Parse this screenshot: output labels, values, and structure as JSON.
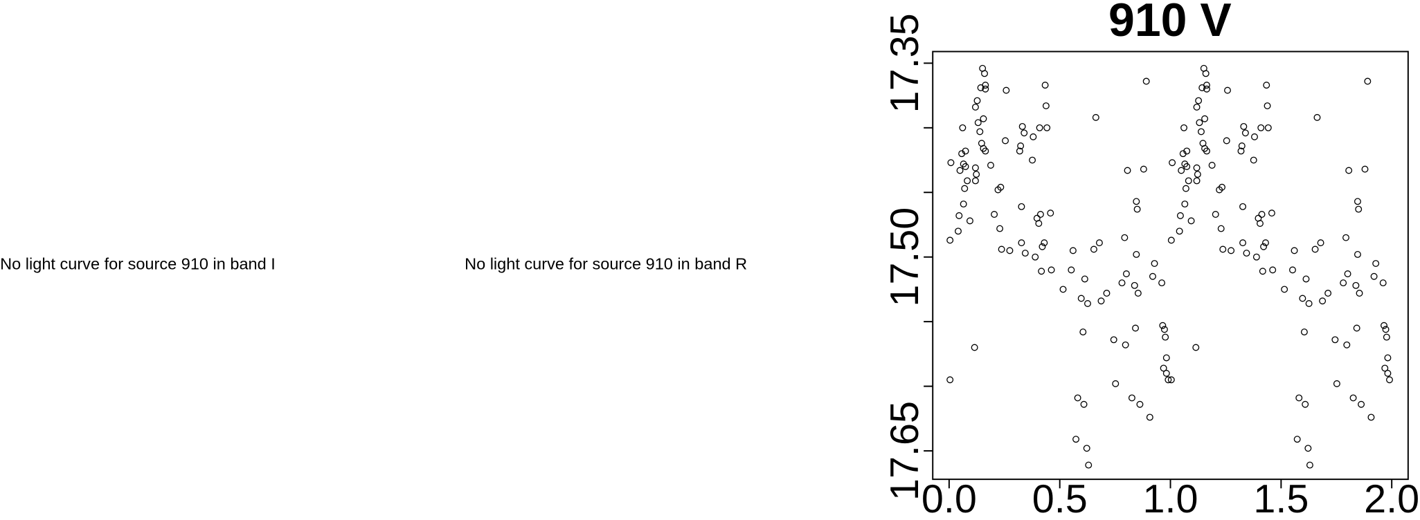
{
  "messages": [
    "No light curve for source 910 in band I",
    "No light curve for source 910 in band R"
  ],
  "chart_data": {
    "type": "scatter",
    "title": "910 V",
    "color": "#000000",
    "xlim": [
      -0.074,
      2.074
    ],
    "ylim": [
      17.672,
      17.341
    ],
    "xticks": [
      {
        "value": 0,
        "label": "0.0"
      },
      {
        "value": 0.5,
        "label": "0.5"
      },
      {
        "value": 1,
        "label": "1.0"
      },
      {
        "value": 1.5,
        "label": "1.5"
      },
      {
        "value": 2,
        "label": "2.0"
      }
    ],
    "yticks": [
      17.35,
      {
        "value": 17.4,
        "label": null
      },
      {
        "value": 17.45,
        "label": null
      },
      {
        "value": 17.5,
        "label": "17.50"
      },
      {
        "value": 17.55,
        "label": null
      },
      {
        "value": 17.6,
        "label": null
      },
      17.65
    ],
    "x": [
      0.004,
      0.004,
      0.008,
      0.041,
      0.045,
      0.049,
      0.057,
      0.061,
      0.065,
      0.065,
      0.07,
      0.074,
      0.074,
      0.082,
      0.094,
      0.115,
      0.119,
      0.119,
      0.119,
      0.123,
      0.127,
      0.131,
      0.139,
      0.143,
      0.147,
      0.151,
      0.155,
      0.155,
      0.16,
      0.164,
      0.164,
      0.164,
      0.188,
      0.204,
      0.221,
      0.229,
      0.233,
      0.237,
      0.254,
      0.258,
      0.274,
      0.319,
      0.323,
      0.327,
      0.327,
      0.331,
      0.339,
      0.344,
      0.376,
      0.38,
      0.389,
      0.397,
      0.405,
      0.409,
      0.413,
      0.417,
      0.421,
      0.43,
      0.434,
      0.438,
      0.442,
      0.458,
      0.462,
      0.515,
      0.552,
      0.56,
      0.573,
      0.581,
      0.597,
      0.605,
      0.609,
      0.613,
      0.622,
      0.626,
      0.63,
      0.654,
      0.663,
      0.679,
      0.687,
      0.712,
      0.744,
      0.752,
      0.781,
      0.793,
      0.797,
      0.801,
      0.806,
      0.826,
      0.838,
      0.842,
      0.846,
      0.846,
      0.85,
      0.854,
      0.862,
      0.879,
      0.891,
      0.907,
      0.92,
      0.928,
      0.961,
      0.965,
      0.969,
      0.973,
      0.977,
      0.982,
      0.982,
      0.99,
      1.004,
      1.004,
      1.008,
      1.041,
      1.045,
      1.049,
      1.057,
      1.061,
      1.065,
      1.065,
      1.07,
      1.074,
      1.074,
      1.082,
      1.094,
      1.115,
      1.119,
      1.119,
      1.119,
      1.123,
      1.127,
      1.131,
      1.139,
      1.143,
      1.147,
      1.151,
      1.155,
      1.155,
      1.16,
      1.164,
      1.164,
      1.164,
      1.188,
      1.204,
      1.221,
      1.229,
      1.233,
      1.237,
      1.254,
      1.258,
      1.274,
      1.319,
      1.323,
      1.327,
      1.327,
      1.331,
      1.339,
      1.344,
      1.376,
      1.38,
      1.389,
      1.397,
      1.405,
      1.409,
      1.413,
      1.417,
      1.421,
      1.43,
      1.434,
      1.438,
      1.442,
      1.458,
      1.462,
      1.515,
      1.552,
      1.56,
      1.573,
      1.581,
      1.597,
      1.605,
      1.609,
      1.613,
      1.622,
      1.626,
      1.63,
      1.654,
      1.663,
      1.679,
      1.687,
      1.712,
      1.744,
      1.752,
      1.781,
      1.793,
      1.797,
      1.801,
      1.806,
      1.826,
      1.838,
      1.842,
      1.846,
      1.846,
      1.85,
      1.854,
      1.862,
      1.879,
      1.891,
      1.907,
      1.92,
      1.928,
      1.961,
      1.965,
      1.969,
      1.973,
      1.977,
      1.982,
      1.982,
      1.99
    ],
    "values": [
      17.487,
      17.595,
      17.427,
      17.48,
      17.468,
      17.433,
      17.42,
      17.4,
      17.428,
      17.459,
      17.447,
      17.43,
      17.418,
      17.441,
      17.472,
      17.57,
      17.441,
      17.431,
      17.384,
      17.436,
      17.379,
      17.396,
      17.403,
      17.369,
      17.412,
      17.354,
      17.393,
      17.416,
      17.358,
      17.367,
      17.37,
      17.418,
      17.429,
      17.467,
      17.448,
      17.478,
      17.446,
      17.494,
      17.41,
      17.371,
      17.495,
      17.418,
      17.414,
      17.461,
      17.489,
      17.399,
      17.404,
      17.497,
      17.425,
      17.407,
      17.5,
      17.47,
      17.474,
      17.4,
      17.467,
      17.511,
      17.492,
      17.489,
      17.367,
      17.383,
      17.4,
      17.466,
      17.51,
      17.525,
      17.51,
      17.495,
      17.641,
      17.609,
      17.532,
      17.558,
      17.614,
      17.517,
      17.648,
      17.536,
      17.661,
      17.494,
      17.392,
      17.489,
      17.534,
      17.528,
      17.564,
      17.598,
      17.52,
      17.485,
      17.568,
      17.513,
      17.433,
      17.609,
      17.522,
      17.555,
      17.498,
      17.457,
      17.463,
      17.528,
      17.614,
      17.432,
      17.364,
      17.624,
      17.515,
      17.505,
      17.52,
      17.553,
      17.586,
      17.556,
      17.562,
      17.59,
      17.578,
      17.595,
      17.487,
      17.595,
      17.427,
      17.48,
      17.468,
      17.433,
      17.42,
      17.4,
      17.428,
      17.459,
      17.447,
      17.43,
      17.418,
      17.441,
      17.472,
      17.57,
      17.441,
      17.431,
      17.384,
      17.436,
      17.379,
      17.396,
      17.403,
      17.369,
      17.412,
      17.354,
      17.393,
      17.416,
      17.358,
      17.367,
      17.37,
      17.418,
      17.429,
      17.467,
      17.448,
      17.478,
      17.446,
      17.494,
      17.41,
      17.371,
      17.495,
      17.418,
      17.414,
      17.461,
      17.489,
      17.399,
      17.404,
      17.497,
      17.425,
      17.407,
      17.5,
      17.47,
      17.474,
      17.4,
      17.467,
      17.511,
      17.492,
      17.489,
      17.367,
      17.383,
      17.4,
      17.466,
      17.51,
      17.525,
      17.51,
      17.495,
      17.641,
      17.609,
      17.532,
      17.558,
      17.614,
      17.517,
      17.648,
      17.536,
      17.661,
      17.494,
      17.392,
      17.489,
      17.534,
      17.528,
      17.564,
      17.598,
      17.52,
      17.485,
      17.568,
      17.513,
      17.433,
      17.609,
      17.522,
      17.555,
      17.498,
      17.457,
      17.463,
      17.528,
      17.614,
      17.432,
      17.364,
      17.624,
      17.515,
      17.505,
      17.52,
      17.553,
      17.586,
      17.556,
      17.562,
      17.59,
      17.578,
      17.595
    ]
  }
}
